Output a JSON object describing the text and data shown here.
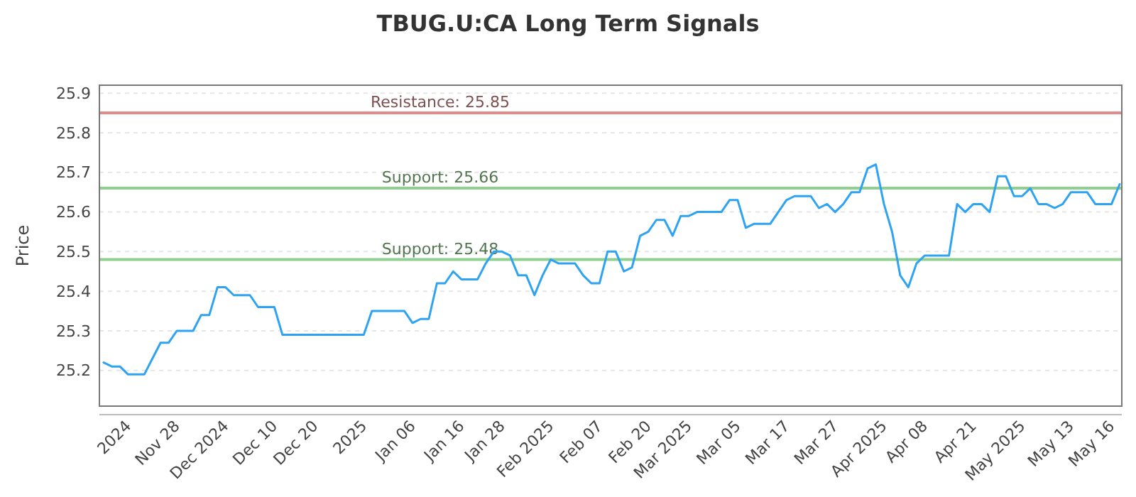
{
  "chart_data": {
    "type": "line",
    "title": "TBUG.U:CA Long Term Signals",
    "ylabel": "Price",
    "categories": [
      null,
      null,
      null,
      "2024",
      null,
      null,
      null,
      null,
      null,
      "Nov 28",
      null,
      null,
      null,
      null,
      null,
      "Dec 2024",
      null,
      null,
      null,
      null,
      null,
      "Dec 10",
      null,
      null,
      null,
      null,
      "Dec 20",
      null,
      null,
      null,
      null,
      null,
      "2025",
      null,
      null,
      null,
      null,
      null,
      "Jan 06",
      null,
      null,
      null,
      null,
      null,
      "Jan 16",
      null,
      null,
      null,
      null,
      "Jan 28",
      null,
      null,
      null,
      null,
      null,
      "Feb 2025",
      null,
      null,
      null,
      null,
      null,
      "Feb 07",
      null,
      null,
      null,
      null,
      null,
      "Feb 20",
      null,
      null,
      null,
      null,
      "Mar 2025",
      null,
      null,
      null,
      null,
      null,
      "Mar 05",
      null,
      null,
      null,
      null,
      null,
      "Mar 17",
      null,
      null,
      null,
      null,
      null,
      "Mar 27",
      null,
      null,
      null,
      null,
      null,
      "Apr 2025",
      null,
      null,
      null,
      null,
      "Apr 08",
      null,
      null,
      null,
      null,
      null,
      "Apr 21",
      null,
      null,
      null,
      null,
      null,
      "May 2025",
      null,
      null,
      null,
      null,
      null,
      "May 13",
      null,
      null,
      null,
      null,
      "May 16",
      null
    ],
    "series": [
      {
        "color": "#2ea3f2",
        "values": [
          25.22,
          25.21,
          25.21,
          25.19,
          25.19,
          25.19,
          25.23,
          25.27,
          25.27,
          25.3,
          25.3,
          25.3,
          25.34,
          25.34,
          25.41,
          25.41,
          25.39,
          25.39,
          25.39,
          25.36,
          25.36,
          25.36,
          25.29,
          25.29,
          25.29,
          25.29,
          25.29,
          25.29,
          25.29,
          25.29,
          25.29,
          25.29,
          25.29,
          25.35,
          25.35,
          25.35,
          25.35,
          25.35,
          25.32,
          25.33,
          25.33,
          25.42,
          25.42,
          25.45,
          25.43,
          25.43,
          25.43,
          25.47,
          25.5,
          25.5,
          25.49,
          25.44,
          25.44,
          25.39,
          25.44,
          25.48,
          25.47,
          25.47,
          25.47,
          25.44,
          25.42,
          25.42,
          25.5,
          25.5,
          25.45,
          25.46,
          25.54,
          25.55,
          25.58,
          25.58,
          25.54,
          25.59,
          25.59,
          25.6,
          25.6,
          25.6,
          25.6,
          25.63,
          25.63,
          25.56,
          25.57,
          25.57,
          25.57,
          25.6,
          25.63,
          25.64,
          25.64,
          25.64,
          25.61,
          25.62,
          25.6,
          25.62,
          25.65,
          25.65,
          25.71,
          25.72,
          25.62,
          25.55,
          25.44,
          25.41,
          25.47,
          25.49,
          25.49,
          25.49,
          25.49,
          25.62,
          25.6,
          25.62,
          25.62,
          25.6,
          25.69,
          25.69,
          25.64,
          25.64,
          25.66,
          25.62,
          25.62,
          25.61,
          25.62,
          25.65,
          25.65,
          25.65,
          25.62,
          25.62,
          25.62,
          25.67
        ]
      }
    ],
    "ylim": [
      25.11,
      25.92
    ],
    "yticks": [
      25.2,
      25.3,
      25.4,
      25.5,
      25.6,
      25.7,
      25.8,
      25.9
    ],
    "grid": "y",
    "ref_lines": [
      {
        "axis": "y",
        "value": 25.85,
        "label": "Resistance: 25.85",
        "color": "#e38b8b"
      },
      {
        "axis": "y",
        "value": 25.66,
        "label": "Support: 25.66",
        "color": "#8fcf8f"
      },
      {
        "axis": "y",
        "value": 25.48,
        "label": "Support: 25.48",
        "color": "#8fcf8f"
      }
    ]
  }
}
